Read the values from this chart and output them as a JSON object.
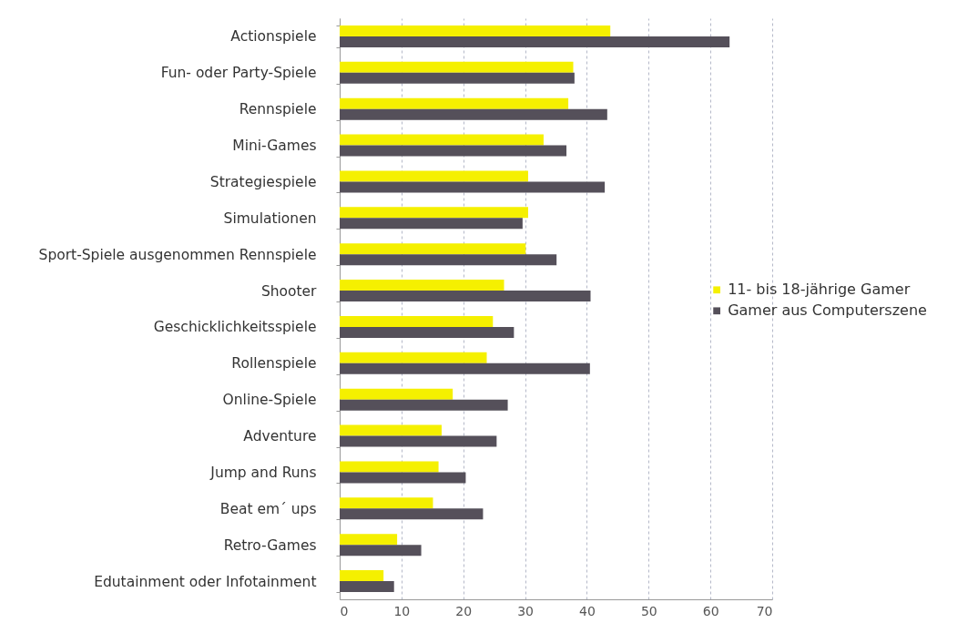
{
  "chart_data": {
    "type": "bar",
    "orientation": "horizontal",
    "categories": [
      "Actionspiele",
      "Fun- oder Party-Spiele",
      "Rennspiele",
      "Mini-Games",
      "Strategiespiele",
      "Simulationen",
      "Sport-Spiele ausgenommen Rennspiele",
      "Shooter",
      "Geschicklichkeitsspiele",
      "Rollenspiele",
      "Online-Spiele",
      "Adventure",
      "Jump and Runs",
      "Beat em´ ups",
      "Retro-Games",
      "Edutainment oder Infotainment"
    ],
    "series": [
      {
        "name": "11- bis 18-jährige Gamer",
        "color": "#f5f000",
        "values": [
          43.8,
          37.8,
          37.0,
          33.0,
          30.5,
          30.5,
          30.1,
          26.6,
          24.8,
          23.8,
          18.3,
          16.5,
          16.0,
          15.1,
          9.3,
          7.1
        ]
      },
      {
        "name": "Gamer aus Computerszene",
        "color": "#55505a",
        "values": [
          63.1,
          38.0,
          43.3,
          36.7,
          42.9,
          29.6,
          35.1,
          40.6,
          28.2,
          40.5,
          27.2,
          25.4,
          20.4,
          23.2,
          13.2,
          8.8
        ]
      }
    ],
    "xlim": [
      0,
      70
    ],
    "xticks": [
      0,
      10,
      20,
      30,
      40,
      50,
      60,
      70
    ],
    "grid": "x",
    "legend": "right"
  }
}
